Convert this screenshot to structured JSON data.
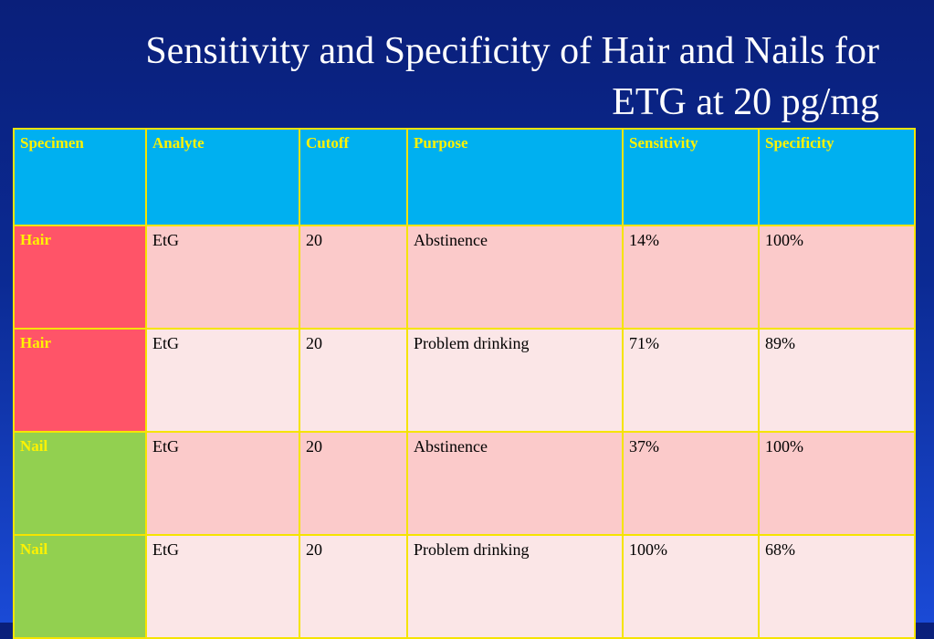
{
  "title": {
    "line1": "Sensitivity and Specificity of Hair and Nails for",
    "line2": "ETG at 20 pg/mg"
  },
  "table": {
    "headers": [
      "Specimen",
      "Analyte",
      "Cutoff",
      "Purpose",
      "Sensitivity",
      "Specificity"
    ],
    "rows": [
      [
        "Hair",
        "EtG",
        "20",
        "Abstinence",
        "14%",
        "100%"
      ],
      [
        "Hair",
        "EtG",
        "20",
        "Problem drinking",
        "71%",
        "89%"
      ],
      [
        "Nail",
        "EtG",
        "20",
        "Abstinence",
        "37%",
        "100%"
      ],
      [
        "Nail",
        "EtG",
        "20",
        "Problem drinking",
        "100%",
        "68%"
      ]
    ]
  },
  "colors": {
    "background": "#0b2a93",
    "header_fill": "#00b0f0",
    "header_text": "#fff200",
    "border": "#f5e400",
    "hair_fill": "#ff5468",
    "nail_fill": "#92d050",
    "row_dark": "#fbcaca",
    "row_light": "#fbe6e7"
  }
}
